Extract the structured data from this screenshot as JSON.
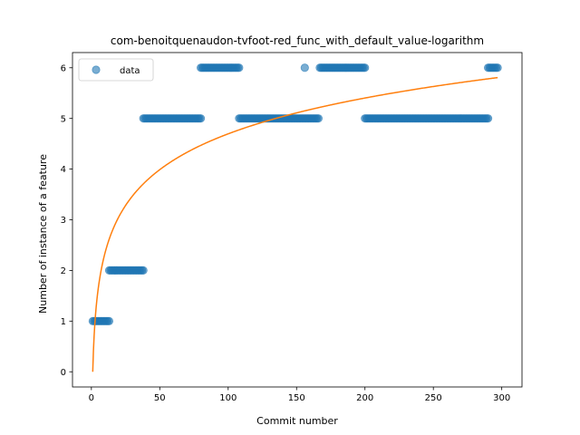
{
  "chart_data": {
    "type": "scatter",
    "title": "com-benoitquenaudon-tvfoot-red_func_with_default_value-logarithm",
    "xlabel": "Commit number",
    "ylabel": "Number of instance of a feature",
    "xlim": [
      -13.8,
      314.8
    ],
    "ylim": [
      -0.3,
      6.3
    ],
    "xticks": [
      0,
      50,
      100,
      150,
      200,
      250,
      300
    ],
    "yticks": [
      0,
      1,
      2,
      3,
      4,
      5,
      6
    ],
    "grid": false,
    "legend_position": "top-left",
    "series": [
      {
        "name": "data",
        "kind": "scatter",
        "color": "#1f77b4",
        "segments": [
          {
            "from": 1,
            "to": 13,
            "y": 1
          },
          {
            "from": 13,
            "to": 38,
            "y": 2
          },
          {
            "from": 38,
            "to": 80,
            "y": 5
          },
          {
            "from": 80,
            "to": 108,
            "y": 6
          },
          {
            "from": 108,
            "to": 166,
            "y": 5
          },
          {
            "from": 167,
            "to": 200,
            "y": 6
          },
          {
            "from": 200,
            "to": 290,
            "y": 5
          },
          {
            "from": 290,
            "to": 297,
            "y": 6
          }
        ],
        "points": [
          {
            "x": 156,
            "y": 6
          }
        ]
      },
      {
        "kind": "line",
        "color": "#ff7f0e",
        "function": "log",
        "coefficient": 1.0197,
        "x_range": [
          1,
          297
        ]
      }
    ]
  }
}
